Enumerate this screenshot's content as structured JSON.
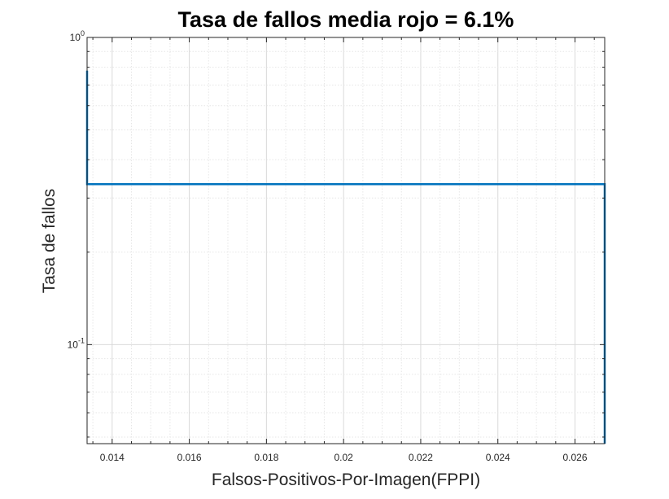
{
  "chart_data": {
    "type": "line",
    "title": "Tasa de fallos media rojo = 6.1%",
    "xlabel": "Falsos-Positivos-Por-Imagen(FPPI)",
    "ylabel": "Tasa de fallos",
    "xscale": "linear",
    "yscale": "log",
    "xlim": [
      0.01335,
      0.02677
    ],
    "ylim": [
      0.0476,
      1.0
    ],
    "xticks": [
      0.014,
      0.016,
      0.018,
      0.02,
      0.022,
      0.024,
      0.026
    ],
    "xtick_labels": [
      "0.014",
      "0.016",
      "0.018",
      "0.02",
      "0.022",
      "0.024",
      "0.026"
    ],
    "yticks": [
      {
        "value": 1.0,
        "base": "10",
        "exponent": "0"
      },
      {
        "value": 0.1,
        "base": "10",
        "exponent": "-1"
      }
    ],
    "grid": true,
    "minor_grid": true,
    "series": [
      {
        "color": "#0072BD",
        "x": [
          0.01335,
          0.01335,
          0.02677,
          0.02677
        ],
        "y": [
          0.78,
          0.333,
          0.333,
          0.0476
        ]
      }
    ]
  }
}
